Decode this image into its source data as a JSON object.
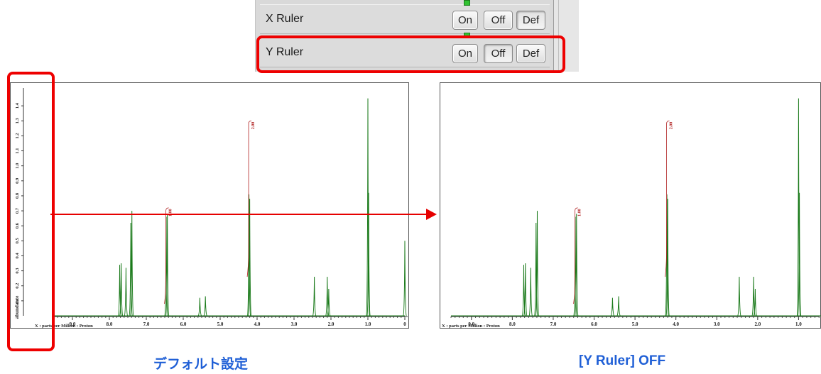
{
  "panel": {
    "rows": [
      {
        "label": "X Ruler",
        "buttons": [
          "On",
          "Off",
          "Def"
        ],
        "pressed": "Def"
      },
      {
        "label": "Y Ruler",
        "buttons": [
          "On",
          "Off",
          "Def"
        ],
        "pressed": "Off"
      }
    ]
  },
  "captions": {
    "left": "デフォルト設定",
    "right": "[Y Ruler] OFF"
  },
  "spectrum": {
    "x_axis_label": "X : parts per Million : Proton",
    "y_axis_label": "abundance",
    "integrals": [
      "1.00",
      "2.00"
    ]
  },
  "colors": {
    "highlight": "#ee0000",
    "arrow": "#e60000",
    "caption": "#1f5fd6",
    "peak": "#1a7a1a",
    "integral": "#b02020"
  },
  "chart_data": [
    {
      "type": "line",
      "name_in_caption": "デフォルト設定",
      "x_axis": {
        "label": "X : parts per Million : Proton",
        "ticks": [
          "9.0",
          "8.0",
          "7.0",
          "6.0",
          "5.0",
          "4.0",
          "3.0",
          "2.0",
          "1.0",
          "0"
        ],
        "reversed": true
      },
      "y_axis": {
        "label": "abundance",
        "ticks": [
          "0.1",
          "0.2",
          "0.3",
          "0.4",
          "0.5",
          "0.6",
          "0.7",
          "0.8",
          "0.9",
          "1.0",
          "1.1",
          "1.2",
          "1.3",
          "1.4"
        ],
        "visible": true
      },
      "peaks": [
        {
          "x": 7.72,
          "y": 0.34
        },
        {
          "x": 7.68,
          "y": 0.35
        },
        {
          "x": 7.55,
          "y": 0.32
        },
        {
          "x": 7.42,
          "y": 0.62
        },
        {
          "x": 7.39,
          "y": 0.7
        },
        {
          "x": 6.46,
          "y": 0.66
        },
        {
          "x": 6.43,
          "y": 0.68
        },
        {
          "x": 5.55,
          "y": 0.12
        },
        {
          "x": 5.4,
          "y": 0.13
        },
        {
          "x": 4.22,
          "y": 0.81
        },
        {
          "x": 4.2,
          "y": 0.78
        },
        {
          "x": 2.45,
          "y": 0.26
        },
        {
          "x": 2.1,
          "y": 0.26
        },
        {
          "x": 2.06,
          "y": 0.18
        },
        {
          "x": 1.0,
          "y": 1.45
        },
        {
          "x": 0.98,
          "y": 0.82
        },
        {
          "x": 0.0,
          "y": 0.5
        }
      ],
      "integrals": [
        {
          "x": 6.45,
          "label": "1.00"
        },
        {
          "x": 4.21,
          "label": "2.00"
        }
      ]
    },
    {
      "type": "line",
      "name_in_caption": "[Y Ruler] OFF",
      "x_axis": {
        "label": "X : parts per Million : Proton",
        "ticks": [
          "9.0",
          "8.0",
          "7.0",
          "6.0",
          "5.0",
          "4.0",
          "3.0",
          "2.0",
          "1.0"
        ],
        "reversed": true
      },
      "y_axis": {
        "visible": false
      },
      "peaks": [
        {
          "x": 7.72,
          "y": 0.34
        },
        {
          "x": 7.68,
          "y": 0.35
        },
        {
          "x": 7.55,
          "y": 0.32
        },
        {
          "x": 7.42,
          "y": 0.62
        },
        {
          "x": 7.39,
          "y": 0.7
        },
        {
          "x": 6.46,
          "y": 0.66
        },
        {
          "x": 6.43,
          "y": 0.68
        },
        {
          "x": 5.55,
          "y": 0.12
        },
        {
          "x": 5.4,
          "y": 0.13
        },
        {
          "x": 4.22,
          "y": 0.81
        },
        {
          "x": 4.2,
          "y": 0.78
        },
        {
          "x": 2.45,
          "y": 0.26
        },
        {
          "x": 2.1,
          "y": 0.26
        },
        {
          "x": 2.06,
          "y": 0.18
        },
        {
          "x": 1.0,
          "y": 1.45
        },
        {
          "x": 0.98,
          "y": 0.82
        }
      ],
      "integrals": [
        {
          "x": 6.45,
          "label": "1.00"
        },
        {
          "x": 4.21,
          "label": "2.00"
        }
      ]
    }
  ]
}
